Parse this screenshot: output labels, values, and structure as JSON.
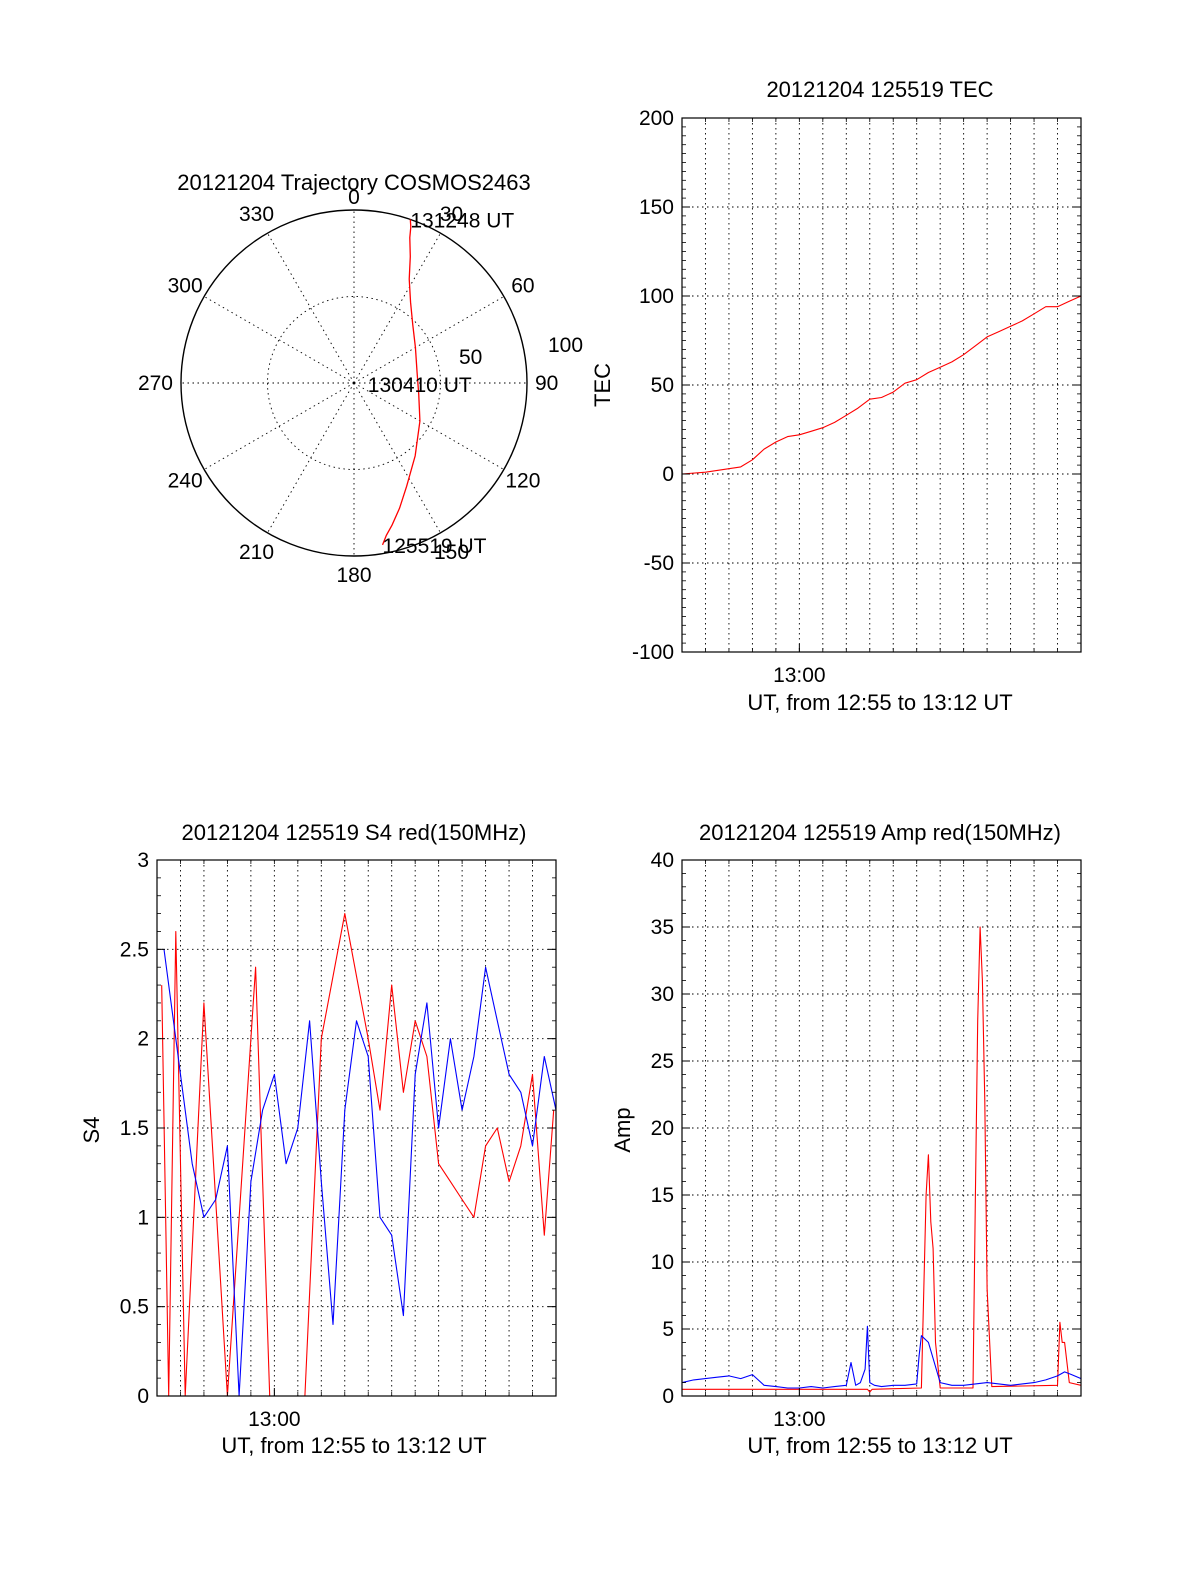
{
  "chart_data": [
    {
      "type": "polar",
      "title": "20121204 Trajectory COSMOS2463",
      "azimuth_labels": [
        "0",
        "30",
        "60",
        "90",
        "120",
        "150",
        "180",
        "210",
        "240",
        "270",
        "300",
        "330"
      ],
      "ring_labels": [
        "50",
        "100"
      ],
      "series": [
        {
          "color": "#ff0000",
          "points": [
            [
              170,
              95
            ],
            [
              168,
              90
            ],
            [
              165,
              85
            ],
            [
              160,
              77
            ],
            [
              153,
              67
            ],
            [
              140,
              55
            ],
            [
              120,
              44
            ],
            [
              100,
              38
            ],
            [
              80,
              37
            ],
            [
              60,
              41
            ],
            [
              45,
              48
            ],
            [
              35,
              57
            ],
            [
              28,
              68
            ],
            [
              24,
              80
            ],
            [
              21,
              90
            ],
            [
              20,
              96
            ],
            [
              19,
              100
            ]
          ]
        }
      ],
      "annotations": [
        {
          "text": "131248 UT",
          "az": 19,
          "r": 100
        },
        {
          "text": "130410 UT",
          "az": 95,
          "r": 8
        },
        {
          "text": "125519 UT",
          "az": 170,
          "r": 95
        }
      ]
    },
    {
      "type": "line",
      "title": "20121204 125519 TEC",
      "ylabel": "TEC",
      "xlabel": "UT, from 12:55 to 13:12 UT",
      "xlim": [
        0,
        17
      ],
      "ylim": [
        -100,
        200
      ],
      "yticks": [
        "-100",
        "-50",
        "0",
        "50",
        "100",
        "150",
        "200"
      ],
      "xticks": [
        {
          "label": "13:00",
          "value": 5
        }
      ],
      "grid": true,
      "series": [
        {
          "color": "#ff0000",
          "x": [
            0,
            1,
            2,
            2.5,
            3,
            3.5,
            4,
            4.5,
            5,
            5.5,
            6,
            6.5,
            7,
            7.5,
            8,
            8.5,
            9,
            9.5,
            10,
            10.5,
            11,
            11.5,
            12,
            12.5,
            13,
            13.5,
            14,
            14.5,
            15,
            15.5,
            16,
            16.5,
            17
          ],
          "y": [
            0,
            1,
            3,
            4,
            8,
            14,
            18,
            21,
            22,
            24,
            26,
            29,
            33,
            37,
            42,
            43,
            46,
            51,
            53,
            57,
            60,
            63,
            67,
            72,
            77,
            80,
            83,
            86,
            90,
            94,
            94,
            97,
            100
          ]
        }
      ]
    },
    {
      "type": "line",
      "title": "20121204 125519 S4 red(150MHz)",
      "ylabel": "S4",
      "xlabel": "UT, from 12:55 to 13:12 UT",
      "xlim": [
        0,
        17
      ],
      "ylim": [
        0,
        3
      ],
      "yticks": [
        "0",
        "0.5",
        "1",
        "1.5",
        "2",
        "2.5",
        "3"
      ],
      "xticks": [
        {
          "label": "13:00",
          "value": 5
        }
      ],
      "grid": true,
      "series": [
        {
          "color": "#ff0000",
          "x": [
            0.2,
            0.5,
            0.8,
            1.2,
            2.0,
            3.0,
            4.2,
            4.8,
            5.5,
            6.3,
            7.0,
            8.0,
            9.0,
            9.5,
            10.0,
            10.5,
            11.0,
            11.5,
            12.0,
            12.5,
            13.0,
            13.5,
            14.0,
            14.5,
            15.0,
            15.5,
            16.0,
            16.5,
            16.9
          ],
          "y": [
            2.3,
            0,
            2.6,
            0,
            2.2,
            0,
            2.4,
            0,
            0,
            0,
            2.0,
            2.7,
            2.0,
            1.6,
            2.3,
            1.7,
            2.1,
            1.9,
            1.3,
            1.2,
            1.1,
            1.0,
            1.4,
            1.5,
            1.2,
            1.4,
            1.8,
            0.9,
            1.6
          ]
        },
        {
          "color": "#0000ff",
          "x": [
            0.3,
            0.8,
            1.5,
            2.0,
            2.5,
            3.0,
            3.5,
            4.0,
            4.5,
            5.0,
            5.5,
            6.0,
            6.5,
            7.0,
            7.5,
            8.0,
            8.5,
            9.0,
            9.5,
            10.0,
            10.5,
            11.0,
            11.5,
            12.0,
            12.5,
            13.0,
            13.5,
            14.0,
            14.5,
            15.0,
            15.5,
            16.0,
            16.5,
            17.0
          ],
          "y": [
            2.5,
            2.0,
            1.3,
            1.0,
            1.1,
            1.4,
            0,
            1.2,
            1.6,
            1.8,
            1.3,
            1.5,
            2.1,
            1.2,
            0.4,
            1.6,
            2.1,
            1.9,
            1.0,
            0.9,
            0.45,
            1.8,
            2.2,
            1.5,
            2.0,
            1.6,
            1.9,
            2.4,
            2.1,
            1.8,
            1.7,
            1.4,
            1.9,
            1.6
          ]
        }
      ]
    },
    {
      "type": "line",
      "title": "20121204 125519 Amp red(150MHz)",
      "ylabel": "Amp",
      "xlabel": "UT, from 12:55 to 13:12 UT",
      "xlim": [
        0,
        17
      ],
      "ylim": [
        0,
        40
      ],
      "yticks": [
        "0",
        "5",
        "10",
        "15",
        "20",
        "25",
        "30",
        "35",
        "40"
      ],
      "xticks": [
        {
          "label": "13:00",
          "value": 5
        }
      ],
      "grid": true,
      "series": [
        {
          "color": "#ff0000",
          "x": [
            0,
            7.9,
            8.0,
            8.1,
            10.2,
            10.4,
            10.5,
            10.6,
            10.7,
            10.8,
            11.0,
            12.4,
            12.5,
            12.6,
            12.7,
            12.8,
            12.9,
            13.0,
            13.2,
            16.0,
            16.1,
            16.2,
            16.3,
            16.5,
            17
          ],
          "y": [
            0.5,
            0.5,
            0.3,
            0.5,
            0.6,
            15.0,
            18.0,
            13.0,
            11.0,
            4.0,
            0.6,
            0.6,
            15.0,
            28.0,
            35.0,
            31.0,
            22.0,
            8.0,
            0.7,
            0.8,
            5.5,
            4.0,
            4.0,
            1.0,
            0.8
          ]
        },
        {
          "color": "#0000ff",
          "x": [
            0,
            0.5,
            1.0,
            1.5,
            2.0,
            2.5,
            3.0,
            3.5,
            4.0,
            4.5,
            5.0,
            5.5,
            6.0,
            6.5,
            7.0,
            7.2,
            7.4,
            7.6,
            7.8,
            7.9,
            8.0,
            8.2,
            8.5,
            9.0,
            9.5,
            10.0,
            10.1,
            10.2,
            10.5,
            11.0,
            11.5,
            12.0,
            12.5,
            13.0,
            13.5,
            14.0,
            14.5,
            15.0,
            15.5,
            16.0,
            16.3,
            16.6,
            17.0
          ],
          "y": [
            1.0,
            1.2,
            1.3,
            1.4,
            1.5,
            1.3,
            1.6,
            0.8,
            0.7,
            0.6,
            0.6,
            0.7,
            0.6,
            0.7,
            0.8,
            2.5,
            0.8,
            1.0,
            2.0,
            5.2,
            1.0,
            0.8,
            0.7,
            0.8,
            0.8,
            0.9,
            3.0,
            4.5,
            4.0,
            1.0,
            0.8,
            0.8,
            0.9,
            1.0,
            0.9,
            0.8,
            0.9,
            1.0,
            1.2,
            1.5,
            1.8,
            1.6,
            1.3
          ]
        }
      ]
    }
  ]
}
